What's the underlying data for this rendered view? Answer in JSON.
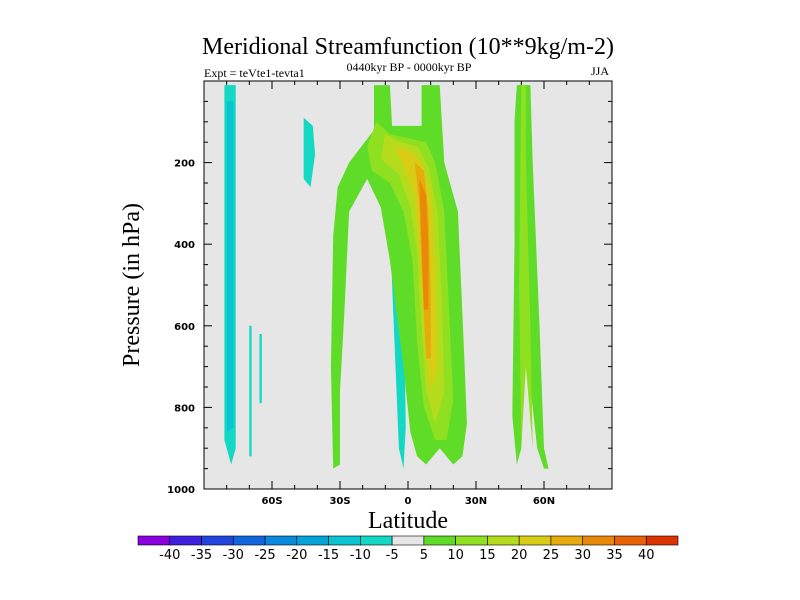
{
  "chart_data": {
    "type": "contour",
    "title": "Meridional Streamfunction (10**9kg/m-2)",
    "subtitle_left": "Expt = teVte1-tevta1",
    "subtitle_center": "0440kyr BP - 0000kyr BP",
    "subtitle_right": "JJA",
    "xlabel": "Latitude",
    "ylabel": "Pressure (in hPa)",
    "xlim": [
      -90,
      90
    ],
    "ylim": [
      1000,
      0
    ],
    "x_ticks": [
      {
        "value": -60,
        "label": "60S"
      },
      {
        "value": -30,
        "label": "30S"
      },
      {
        "value": 0,
        "label": "0"
      },
      {
        "value": 30,
        "label": "30N"
      },
      {
        "value": 60,
        "label": "60N"
      }
    ],
    "y_ticks": [
      {
        "value": 200,
        "label": "200"
      },
      {
        "value": 400,
        "label": "400"
      },
      {
        "value": 600,
        "label": "600"
      },
      {
        "value": 800,
        "label": "800"
      },
      {
        "value": 1000,
        "label": "1000"
      }
    ],
    "background_color": "#e6e6e6",
    "colorbar": {
      "labels": [
        "-40",
        "-35",
        "-30",
        "-25",
        "-20",
        "-15",
        "-10",
        "-5",
        "5",
        "10",
        "15",
        "20",
        "25",
        "30",
        "35",
        "40"
      ],
      "colors": [
        "#8a00e0",
        "#3f1fe0",
        "#2244dd",
        "#1166dd",
        "#0a88dd",
        "#05a4d8",
        "#0ac4d2",
        "#12d8c4",
        "#e6e6e6",
        "#5edc28",
        "#8ee020",
        "#b4dc1c",
        "#d8cc14",
        "#e6aa0c",
        "#ea880a",
        "#e86208",
        "#dd3300"
      ]
    },
    "regions": [
      {
        "name": "cyan-60S-lon",
        "level": -5,
        "points": [
          [
            -81,
            10
          ],
          [
            -76,
            10
          ],
          [
            -76,
            900
          ],
          [
            -78,
            940
          ],
          [
            -81,
            880
          ]
        ]
      },
      {
        "name": "teal-60S-core",
        "level": -10,
        "points": [
          [
            -80,
            50
          ],
          [
            -77,
            50
          ],
          [
            -77,
            850
          ],
          [
            -80,
            860
          ]
        ]
      },
      {
        "name": "cyan-small-60S",
        "level": -5,
        "points": [
          [
            -70,
            600
          ],
          [
            -69,
            600
          ],
          [
            -69,
            920
          ],
          [
            -70,
            920
          ]
        ]
      },
      {
        "name": "cyan-tiny-60S",
        "level": -5,
        "points": [
          [
            -65.5,
            620
          ],
          [
            -64.5,
            620
          ],
          [
            -64.5,
            790
          ],
          [
            -65.5,
            790
          ]
        ]
      },
      {
        "name": "cyan-upper-40S",
        "level": -5,
        "points": [
          [
            -46,
            90
          ],
          [
            -42,
            110
          ],
          [
            -41,
            180
          ],
          [
            -43,
            260
          ],
          [
            -46,
            240
          ]
        ]
      },
      {
        "name": "cyan-eq",
        "level": -5,
        "points": [
          [
            -8,
            300
          ],
          [
            -4,
            320
          ],
          [
            -2,
            420
          ],
          [
            -1,
            850
          ],
          [
            -2,
            950
          ],
          [
            -4,
            900
          ],
          [
            -7,
            500
          ]
        ]
      },
      {
        "name": "green-10N-band",
        "level": 5,
        "points": [
          [
            -15,
            10
          ],
          [
            -8,
            10
          ],
          [
            -7,
            110
          ],
          [
            6,
            110
          ],
          [
            6,
            10
          ],
          [
            14,
            10
          ],
          [
            16,
            200
          ],
          [
            22,
            320
          ],
          [
            25,
            700
          ],
          [
            26,
            840
          ],
          [
            24,
            920
          ],
          [
            20,
            940
          ],
          [
            14,
            900
          ],
          [
            8,
            940
          ],
          [
            4,
            920
          ],
          [
            1,
            860
          ],
          [
            -2,
            700
          ],
          [
            -8,
            440
          ],
          [
            -12,
            310
          ],
          [
            -18,
            240
          ],
          [
            -26,
            320
          ],
          [
            -28,
            560
          ],
          [
            -30,
            760
          ],
          [
            -30,
            940
          ],
          [
            -33,
            950
          ],
          [
            -34,
            700
          ],
          [
            -33,
            380
          ],
          [
            -31,
            260
          ],
          [
            -26,
            200
          ],
          [
            -15,
            120
          ]
        ]
      },
      {
        "name": "green-60N-band",
        "level": 5,
        "points": [
          [
            48,
            10
          ],
          [
            54,
            10
          ],
          [
            55,
            200
          ],
          [
            58,
            600
          ],
          [
            60,
            900
          ],
          [
            62,
            950
          ],
          [
            60,
            950
          ],
          [
            57,
            900
          ],
          [
            53,
            700
          ],
          [
            51,
            700
          ],
          [
            50,
            900
          ],
          [
            48,
            940
          ],
          [
            46,
            820
          ],
          [
            47,
            400
          ],
          [
            47,
            100
          ]
        ]
      },
      {
        "name": "green-60N-b",
        "level": 10,
        "points": [
          [
            50,
            10
          ],
          [
            52,
            10
          ],
          [
            52,
            200
          ],
          [
            54,
            600
          ],
          [
            55,
            900
          ],
          [
            52,
            700
          ],
          [
            50,
            900
          ],
          [
            49,
            500
          ]
        ]
      },
      {
        "name": "lime-eq",
        "level": 10,
        "points": [
          [
            -14,
            100
          ],
          [
            -8,
            130
          ],
          [
            0,
            140
          ],
          [
            8,
            150
          ],
          [
            12,
            200
          ],
          [
            16,
            320
          ],
          [
            18,
            550
          ],
          [
            20,
            780
          ],
          [
            17,
            880
          ],
          [
            12,
            880
          ],
          [
            7,
            800
          ],
          [
            4,
            640
          ],
          [
            2,
            440
          ],
          [
            -2,
            320
          ],
          [
            -8,
            250
          ],
          [
            -16,
            220
          ],
          [
            -18,
            160
          ]
        ]
      },
      {
        "name": "yellow-eq",
        "level": 15,
        "points": [
          [
            -10,
            130
          ],
          [
            -3,
            150
          ],
          [
            4,
            160
          ],
          [
            9,
            210
          ],
          [
            13,
            320
          ],
          [
            15,
            550
          ],
          [
            16,
            760
          ],
          [
            12,
            840
          ],
          [
            8,
            760
          ],
          [
            6,
            600
          ],
          [
            4,
            420
          ],
          [
            1,
            310
          ],
          [
            -4,
            230
          ],
          [
            -12,
            190
          ]
        ]
      },
      {
        "name": "gold-eq",
        "level": 20,
        "points": [
          [
            -6,
            160
          ],
          [
            1,
            170
          ],
          [
            6,
            200
          ],
          [
            10,
            280
          ],
          [
            12,
            460
          ],
          [
            13,
            700
          ],
          [
            10,
            760
          ],
          [
            7,
            600
          ],
          [
            5,
            400
          ],
          [
            3,
            280
          ],
          [
            -2,
            210
          ]
        ]
      },
      {
        "name": "orange-eq",
        "level": 25,
        "points": [
          [
            3,
            200
          ],
          [
            7,
            220
          ],
          [
            9,
            320
          ],
          [
            10,
            520
          ],
          [
            10,
            680
          ],
          [
            8,
            680
          ],
          [
            6,
            460
          ],
          [
            5,
            300
          ]
        ]
      },
      {
        "name": "red-orange-core",
        "level": 30,
        "points": [
          [
            5,
            240
          ],
          [
            8,
            280
          ],
          [
            9,
            400
          ],
          [
            9,
            560
          ],
          [
            7,
            560
          ],
          [
            6,
            400
          ]
        ]
      }
    ]
  }
}
